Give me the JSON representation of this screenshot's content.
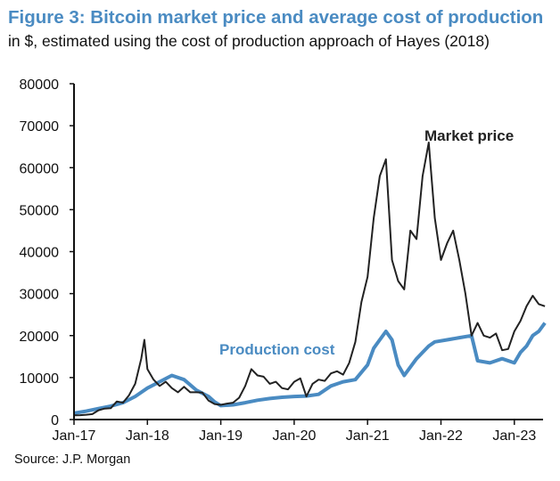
{
  "chart_data": {
    "type": "line",
    "title": "Figure 3: Bitcoin market price and average cost of production",
    "subtitle": "in $, estimated using the cost of production approach of Hayes (2018)",
    "source": "Source: J.P. Morgan",
    "xlabel": "",
    "ylabel": "",
    "ylim": [
      0,
      80000
    ],
    "xlim": [
      "2017-01",
      "2023-06"
    ],
    "yticks": [
      "0",
      "10000",
      "20000",
      "30000",
      "40000",
      "50000",
      "60000",
      "70000",
      "80000"
    ],
    "xticks": [
      {
        "date": "2017-01",
        "label": "Jan-17"
      },
      {
        "date": "2018-01",
        "label": "Jan-18"
      },
      {
        "date": "2019-01",
        "label": "Jan-19"
      },
      {
        "date": "2020-01",
        "label": "Jan-20"
      },
      {
        "date": "2021-01",
        "label": "Jan-21"
      },
      {
        "date": "2022-01",
        "label": "Jan-22"
      },
      {
        "date": "2023-01",
        "label": "Jan-23"
      }
    ],
    "grid": false,
    "legend": "inline annotations",
    "series": [
      {
        "name": "Market price",
        "color": "#222222",
        "points": [
          [
            "2017-01",
            1000
          ],
          [
            "2017-02",
            1050
          ],
          [
            "2017-03",
            1150
          ],
          [
            "2017-04",
            1300
          ],
          [
            "2017-05",
            2200
          ],
          [
            "2017-06",
            2600
          ],
          [
            "2017-07",
            2700
          ],
          [
            "2017-08",
            4300
          ],
          [
            "2017-09",
            4000
          ],
          [
            "2017-10",
            5800
          ],
          [
            "2017-11",
            8500
          ],
          [
            "2017-12",
            14500
          ],
          [
            "2017-12.5",
            19000
          ],
          [
            "2018-01",
            12000
          ],
          [
            "2018-02",
            9500
          ],
          [
            "2018-03",
            8000
          ],
          [
            "2018-04",
            9000
          ],
          [
            "2018-05",
            7500
          ],
          [
            "2018-06",
            6500
          ],
          [
            "2018-07",
            7800
          ],
          [
            "2018-08",
            6500
          ],
          [
            "2018-09",
            6500
          ],
          [
            "2018-10",
            6400
          ],
          [
            "2018-11",
            4500
          ],
          [
            "2018-12",
            3700
          ],
          [
            "2019-01",
            3500
          ],
          [
            "2019-02",
            3800
          ],
          [
            "2019-03",
            4000
          ],
          [
            "2019-04",
            5200
          ],
          [
            "2019-05",
            8000
          ],
          [
            "2019-06",
            12000
          ],
          [
            "2019-07",
            10500
          ],
          [
            "2019-08",
            10200
          ],
          [
            "2019-09",
            8500
          ],
          [
            "2019-10",
            9000
          ],
          [
            "2019-11",
            7500
          ],
          [
            "2019-12",
            7200
          ],
          [
            "2020-01",
            9000
          ],
          [
            "2020-02",
            9800
          ],
          [
            "2020-03",
            5500
          ],
          [
            "2020-04",
            8500
          ],
          [
            "2020-05",
            9500
          ],
          [
            "2020-06",
            9200
          ],
          [
            "2020-07",
            11000
          ],
          [
            "2020-08",
            11500
          ],
          [
            "2020-09",
            10700
          ],
          [
            "2020-10",
            13500
          ],
          [
            "2020-11",
            18500
          ],
          [
            "2020-12",
            28000
          ],
          [
            "2021-01",
            34000
          ],
          [
            "2021-02",
            48000
          ],
          [
            "2021-03",
            58000
          ],
          [
            "2021-04",
            62000
          ],
          [
            "2021-05",
            38000
          ],
          [
            "2021-06",
            33000
          ],
          [
            "2021-07",
            31000
          ],
          [
            "2021-08",
            45000
          ],
          [
            "2021-09",
            43000
          ],
          [
            "2021-10",
            58000
          ],
          [
            "2021-11",
            66000
          ],
          [
            "2021-12",
            48000
          ],
          [
            "2022-01",
            38000
          ],
          [
            "2022-02",
            42000
          ],
          [
            "2022-03",
            45000
          ],
          [
            "2022-04",
            38000
          ],
          [
            "2022-05",
            30000
          ],
          [
            "2022-06",
            20000
          ],
          [
            "2022-07",
            23000
          ],
          [
            "2022-08",
            20000
          ],
          [
            "2022-09",
            19500
          ],
          [
            "2022-10",
            20500
          ],
          [
            "2022-11",
            16500
          ],
          [
            "2022-12",
            16800
          ],
          [
            "2023-01",
            21000
          ],
          [
            "2023-02",
            23500
          ],
          [
            "2023-03",
            27000
          ],
          [
            "2023-04",
            29500
          ],
          [
            "2023-05",
            27500
          ],
          [
            "2023-06",
            27000
          ]
        ]
      },
      {
        "name": "Production cost",
        "color": "#4a8bc2",
        "points": [
          [
            "2017-01",
            1500
          ],
          [
            "2017-03",
            2000
          ],
          [
            "2017-05",
            2600
          ],
          [
            "2017-07",
            3200
          ],
          [
            "2017-09",
            4000
          ],
          [
            "2017-11",
            5500
          ],
          [
            "2018-01",
            7500
          ],
          [
            "2018-03",
            9000
          ],
          [
            "2018-05",
            10500
          ],
          [
            "2018-07",
            9500
          ],
          [
            "2018-09",
            7000
          ],
          [
            "2018-11",
            5500
          ],
          [
            "2018-12",
            4200
          ],
          [
            "2019-01",
            3300
          ],
          [
            "2019-03",
            3500
          ],
          [
            "2019-05",
            4000
          ],
          [
            "2019-07",
            4600
          ],
          [
            "2019-09",
            5000
          ],
          [
            "2019-11",
            5300
          ],
          [
            "2020-01",
            5500
          ],
          [
            "2020-03",
            5600
          ],
          [
            "2020-05",
            6000
          ],
          [
            "2020-07",
            8000
          ],
          [
            "2020-09",
            9000
          ],
          [
            "2020-11",
            9500
          ],
          [
            "2021-01",
            13000
          ],
          [
            "2021-02",
            17000
          ],
          [
            "2021-03",
            19000
          ],
          [
            "2021-04",
            21000
          ],
          [
            "2021-05",
            19000
          ],
          [
            "2021-06",
            13000
          ],
          [
            "2021-07",
            10500
          ],
          [
            "2021-08",
            12500
          ],
          [
            "2021-09",
            14500
          ],
          [
            "2021-10",
            16000
          ],
          [
            "2021-11",
            17500
          ],
          [
            "2021-12",
            18500
          ],
          [
            "2022-02",
            19000
          ],
          [
            "2022-04",
            19500
          ],
          [
            "2022-06",
            20000
          ],
          [
            "2022-07",
            14000
          ],
          [
            "2022-09",
            13500
          ],
          [
            "2022-11",
            14500
          ],
          [
            "2023-01",
            13500
          ],
          [
            "2023-02",
            16000
          ],
          [
            "2023-03",
            17500
          ],
          [
            "2023-04",
            20000
          ],
          [
            "2023-05",
            21000
          ],
          [
            "2023-06",
            23000
          ]
        ]
      }
    ],
    "annotations": [
      {
        "text": "Market price",
        "series": "Market price"
      },
      {
        "text": "Production cost",
        "series": "Production cost"
      }
    ]
  }
}
